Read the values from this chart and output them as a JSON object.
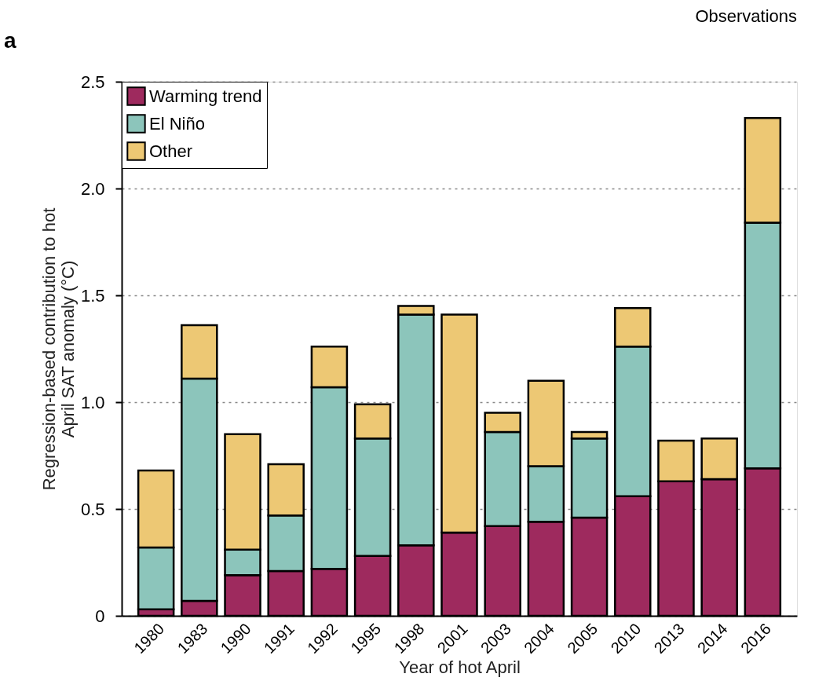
{
  "chart_data": {
    "type": "bar",
    "stacked": true,
    "title": "Observations",
    "xlabel": "Year of hot April",
    "ylabel": "Regression-based contribution to hot\nApril SAT anomaly (°C)",
    "annotations": [
      "a"
    ],
    "categories": [
      "1980",
      "1983",
      "1990",
      "1991",
      "1992",
      "1995",
      "1998",
      "2001",
      "2003",
      "2004",
      "2005",
      "2010",
      "2013",
      "2014",
      "2016"
    ],
    "series": [
      {
        "name": "Warming trend",
        "color": "#9e2a5e",
        "values": [
          0.03,
          0.07,
          0.19,
          0.21,
          0.22,
          0.28,
          0.33,
          0.39,
          0.42,
          0.44,
          0.46,
          0.56,
          0.63,
          0.64,
          0.69
        ]
      },
      {
        "name": "El Niño",
        "color": "#8cc5bb",
        "values": [
          0.29,
          1.04,
          0.12,
          0.26,
          0.85,
          0.55,
          1.08,
          0,
          0.44,
          0.26,
          0.37,
          0.7,
          0,
          0,
          1.15
        ]
      },
      {
        "name": "Other",
        "color": "#edc874",
        "values": [
          0.36,
          0.25,
          0.54,
          0.24,
          0.19,
          0.16,
          0.04,
          1.02,
          0.09,
          0.4,
          0.03,
          0.18,
          0.19,
          0.19,
          0.49
        ]
      }
    ],
    "ylim": [
      0,
      2.5
    ],
    "yticks": [
      0,
      {
        "value": 0.5,
        "label": "0.5"
      },
      {
        "value": 1,
        "label": "1.0"
      },
      {
        "value": 1.5,
        "label": "1.5"
      },
      {
        "value": 2,
        "label": "2.0"
      },
      {
        "value": 2.5,
        "label": "2.5"
      }
    ],
    "grid": "y",
    "legend": "top left"
  }
}
